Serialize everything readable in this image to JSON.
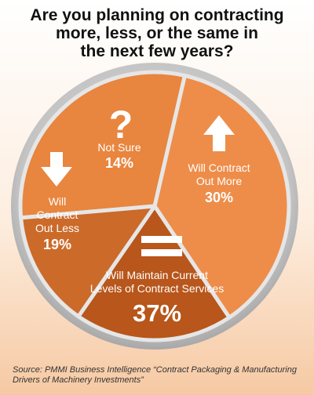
{
  "title_lines": [
    "Are you planning on contracting",
    "more, less, or the same in",
    "the next few years?"
  ],
  "chart_data": {
    "type": "pie",
    "title": "Are you planning on contracting more, less, or the same in the next few years?",
    "slices": [
      {
        "label_lines": [
          "Will Contract",
          "Out More"
        ],
        "value": 30,
        "display": "30%",
        "color": "#e8853e",
        "icon": "arrow-up-icon"
      },
      {
        "label_lines": [
          "Will Maintain Current",
          "Levels of Contract Services"
        ],
        "value": 37,
        "display": "37%",
        "color": "#ee8d49",
        "icon": "equals-icon"
      },
      {
        "label_lines": [
          "Will",
          "Contract",
          "Out Less"
        ],
        "value": 19,
        "display": "19%",
        "color": "#b8561b",
        "icon": "arrow-down-icon"
      },
      {
        "label_lines": [
          "Not Sure"
        ],
        "value": 14,
        "display": "14%",
        "color": "#cc6a2a",
        "icon": "question-mark-icon"
      }
    ]
  },
  "source": {
    "line1": "Source: PMMI Business Intelligence “Contract Packaging & Manufacturing",
    "line2": "Drivers of Machinery Investments”"
  }
}
